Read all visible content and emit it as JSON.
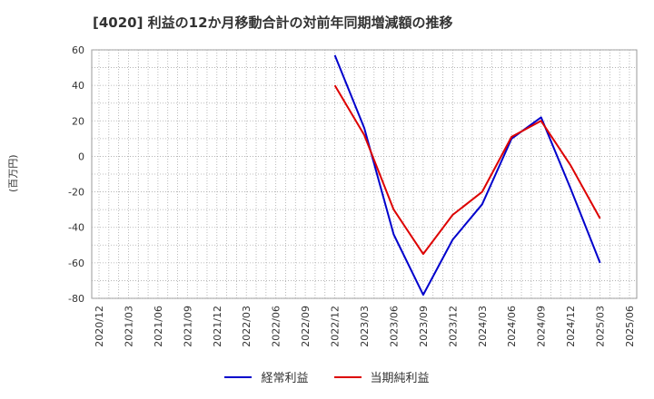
{
  "chart_data": {
    "type": "line",
    "title": "[4020]  利益の12か月移動合計の対前年同期増減額の推移",
    "ylabel": "(百万円)",
    "xlabel": "",
    "ylim": [
      -80,
      60
    ],
    "yticks": [
      60,
      40,
      20,
      0,
      -20,
      -40,
      -60,
      -80
    ],
    "categories": [
      "2020/12",
      "2021/03",
      "2021/06",
      "2021/09",
      "2021/12",
      "2022/03",
      "2022/06",
      "2022/09",
      "2022/12",
      "2023/03",
      "2023/06",
      "2023/09",
      "2023/12",
      "2024/03",
      "2024/06",
      "2024/09",
      "2024/12",
      "2025/03",
      "2025/06"
    ],
    "grid": true,
    "series": [
      {
        "name": "経常利益",
        "color": "#0000cc",
        "values": [
          null,
          null,
          null,
          null,
          null,
          null,
          null,
          null,
          57,
          16,
          -44,
          -78,
          -47,
          -27,
          10,
          22,
          -18,
          -60,
          null
        ]
      },
      {
        "name": "当期純利益",
        "color": "#dd0000",
        "values": [
          null,
          null,
          null,
          null,
          null,
          null,
          null,
          null,
          40,
          12,
          -30,
          -55,
          -33,
          -20,
          11,
          20,
          -5,
          -35,
          null
        ]
      }
    ]
  }
}
